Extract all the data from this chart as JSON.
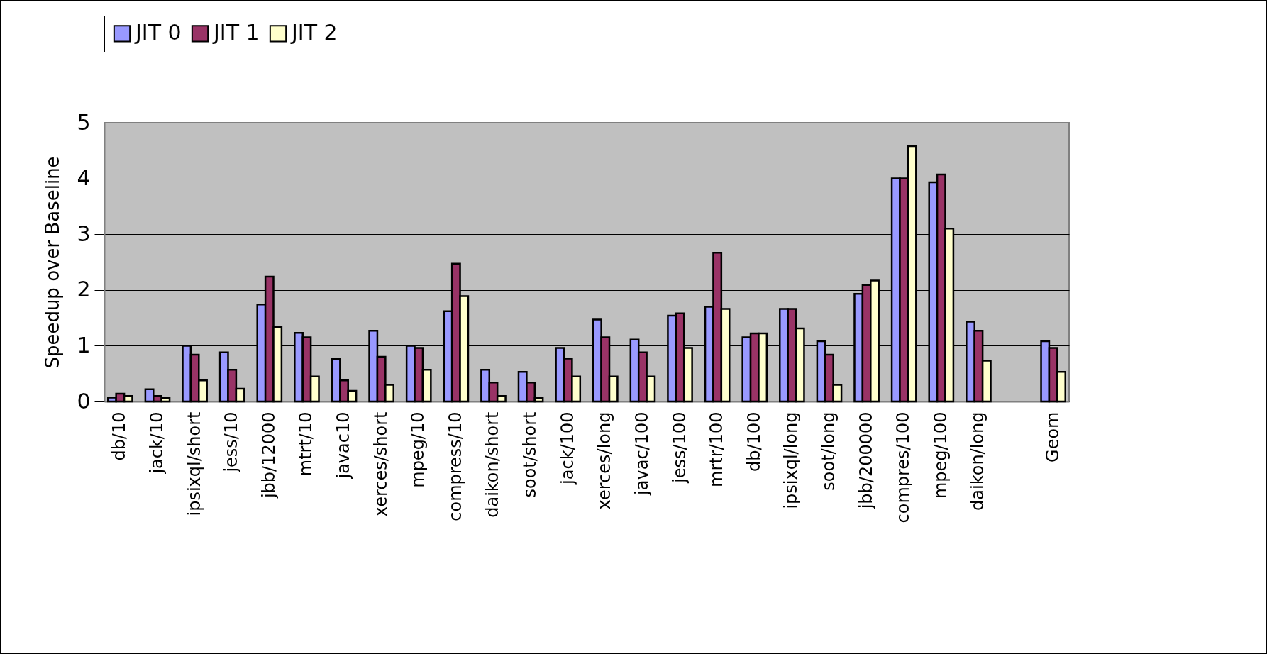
{
  "chart_data": {
    "type": "bar",
    "ylabel": "Speedup over Baseline",
    "categories": [
      "db/10",
      "jack/10",
      "ipsixql/short",
      "jess/10",
      "jbb/12000",
      "mtrt/10",
      "javac10",
      "xerces/short",
      "mpeg/10",
      "compress/10",
      "daikon/short",
      "soot/short",
      "jack/100",
      "xerces/long",
      "javac/100",
      "jess/100",
      "mrtr/100",
      "db/100",
      "ipsixql/long",
      "soot/long",
      "jbb/200000",
      "compres/100",
      "mpeg/100",
      "daikon/long",
      null,
      "Geom"
    ],
    "series": [
      {
        "name": "JIT 0",
        "color": "#9999ff",
        "values": [
          0.07,
          0.22,
          1.0,
          0.88,
          1.74,
          1.23,
          0.76,
          1.27,
          1.0,
          1.62,
          0.57,
          0.53,
          0.96,
          1.47,
          1.11,
          1.54,
          1.7,
          1.15,
          1.66,
          1.08,
          1.93,
          4.0,
          3.93,
          1.43,
          null,
          1.08
        ]
      },
      {
        "name": "JIT 1",
        "color": "#993366",
        "values": [
          0.14,
          0.1,
          0.84,
          0.57,
          2.24,
          1.15,
          0.38,
          0.8,
          0.96,
          2.47,
          0.34,
          0.34,
          0.77,
          1.15,
          0.88,
          1.58,
          2.67,
          1.22,
          1.66,
          0.84,
          2.09,
          4.0,
          4.07,
          1.27,
          null,
          0.96
        ]
      },
      {
        "name": "JIT 2",
        "color": "#ffffcc",
        "values": [
          0.1,
          0.06,
          0.38,
          0.23,
          1.34,
          0.45,
          0.19,
          0.3,
          0.57,
          1.89,
          0.1,
          0.06,
          0.45,
          0.45,
          0.45,
          0.96,
          1.66,
          1.22,
          1.31,
          0.3,
          2.17,
          4.58,
          3.1,
          0.73,
          null,
          0.53
        ]
      }
    ],
    "ylim": [
      0,
      5
    ],
    "yticks": [
      0,
      1,
      2,
      3,
      4,
      5
    ],
    "grid": "y",
    "legend": "top"
  }
}
